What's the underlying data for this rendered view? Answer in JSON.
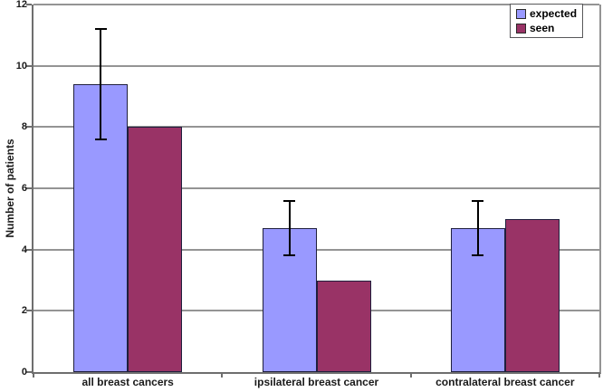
{
  "chart_data": {
    "type": "bar",
    "title": "",
    "xlabel": "",
    "ylabel": "Number of patients",
    "ylim": [
      0,
      12
    ],
    "y_ticks": [
      0,
      2,
      4,
      6,
      8,
      10,
      12
    ],
    "grid": true,
    "legend_position": "top-right",
    "categories": [
      "all breast cancers",
      "ipsilateral breast cancer",
      "contralateral breast cancer"
    ],
    "series": [
      {
        "name": "expected",
        "color": "#9999ff",
        "values": [
          9.4,
          4.7,
          4.7
        ],
        "error_bars": {
          "low": [
            7.6,
            3.8,
            3.8
          ],
          "high": [
            11.2,
            5.6,
            5.6
          ]
        }
      },
      {
        "name": "seen",
        "color": "#993366",
        "values": [
          8,
          3,
          5
        ]
      }
    ]
  },
  "style_colors": {
    "background": "#ffffff",
    "gridline": "#949494",
    "axis": "#6e6e6e",
    "bar_border": "#1f1f3d",
    "error_bar": "#000000",
    "text": "#1a1a1a",
    "legend_border": "#58585a"
  }
}
